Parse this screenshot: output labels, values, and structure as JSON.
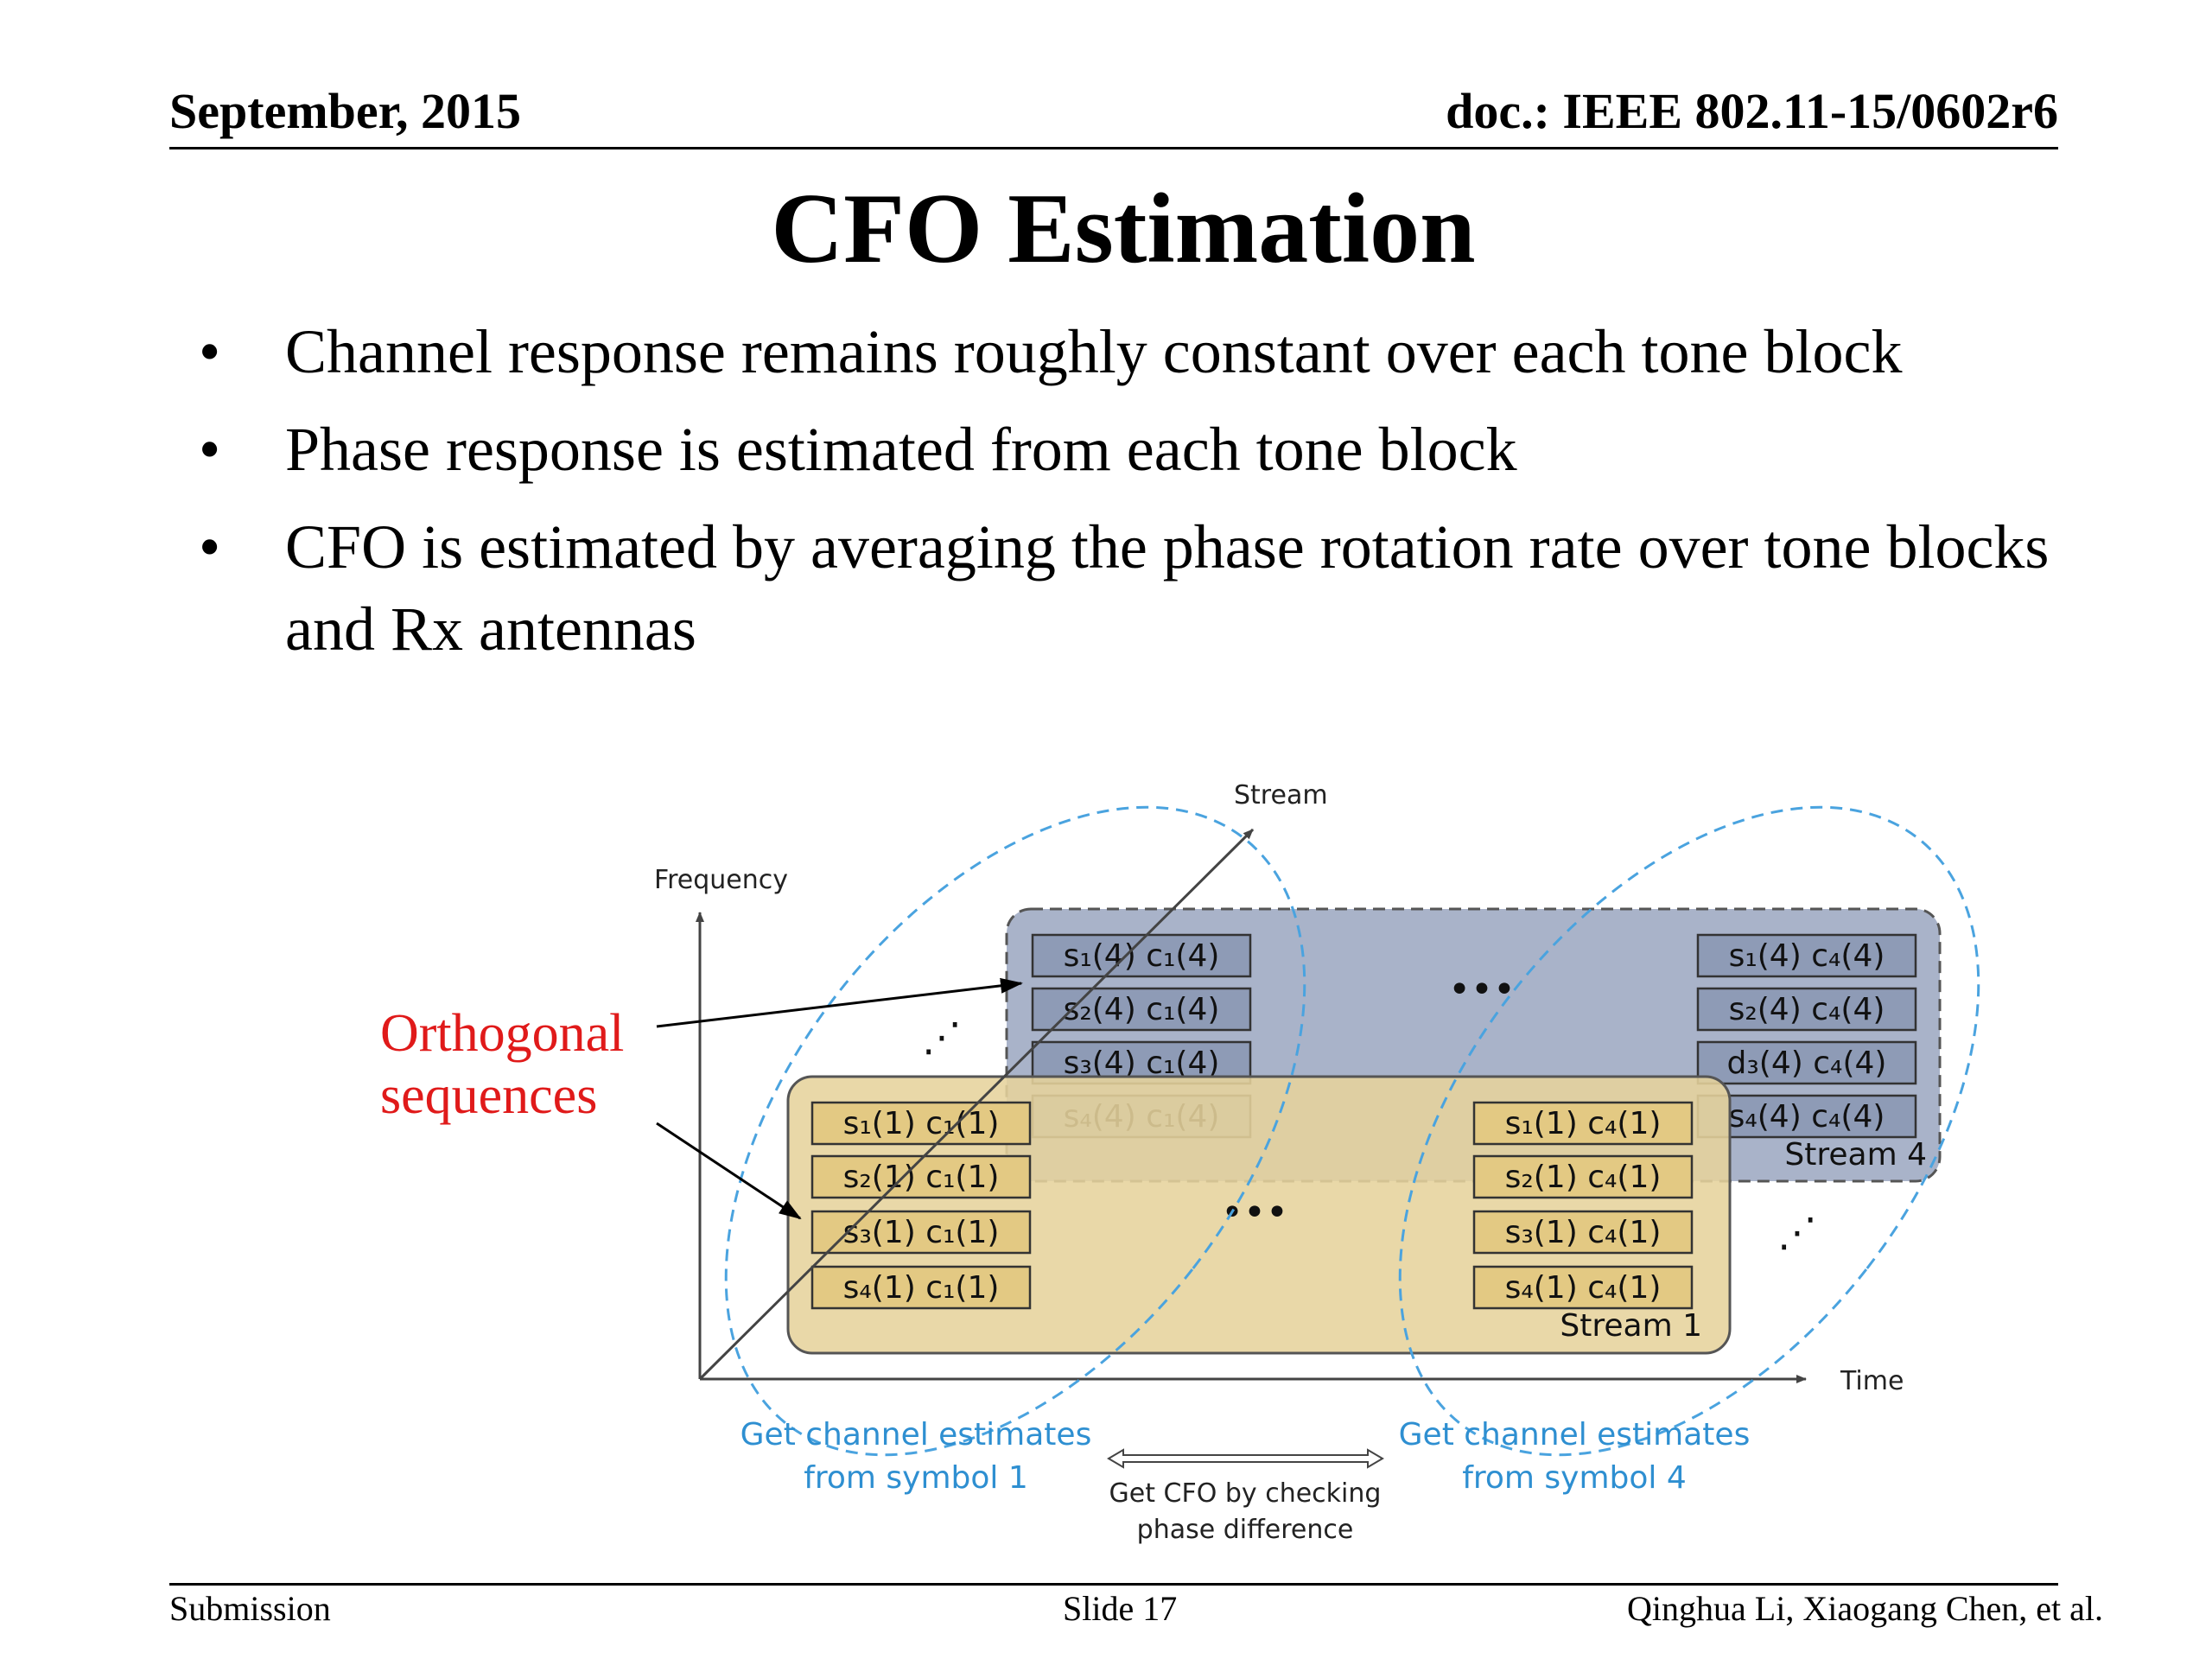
{
  "header": {
    "date": "September, 2015",
    "doc": "doc.: IEEE 802.11-15/0602r6"
  },
  "title": "CFO Estimation",
  "bullets": [
    "Channel response remains roughly constant over each tone block",
    "Phase response is estimated from each tone block",
    "CFO is estimated by averaging the phase rotation rate over tone blocks and Rx antennas"
  ],
  "bullet_glyph": "•",
  "diagram": {
    "axis_stream": "Stream",
    "axis_frequency": "Frequency",
    "axis_time": "Time",
    "orthogonal_line1": "Orthogonal",
    "orthogonal_line2": "sequences",
    "stream4_label": "Stream 4",
    "stream1_label": "Stream 1",
    "stream4_left": [
      "s₁(4) c₁(4)",
      "s₂(4) c₁(4)",
      "s₃(4) c₁(4)",
      "s₄(4) c₁(4)"
    ],
    "stream4_right": [
      "s₁(4) c₄(4)",
      "s₂(4) c₄(4)",
      "d₃(4) c₄(4)",
      "s₄(4) c₄(4)"
    ],
    "stream1_left": [
      "s₁(1) c₁(1)",
      "s₂(1) c₁(1)",
      "s₃(1) c₁(1)",
      "s₄(1) c₁(1)"
    ],
    "stream1_right": [
      "s₁(1) c₄(1)",
      "s₂(1) c₄(1)",
      "s₃(1) c₄(1)",
      "s₄(1) c₄(1)"
    ],
    "ellipsis": "•••",
    "diag_ellipsis": "⋰",
    "caption_left_1": "Get channel estimates",
    "caption_left_2": "from symbol 1",
    "caption_right_1": "Get channel estimates",
    "caption_right_2": "from symbol 4",
    "caption_mid_1": "Get CFO by checking",
    "caption_mid_2": "phase difference",
    "colors": {
      "stream4_fill": "#9aa6bf",
      "stream1_fill": "#e6d39c",
      "cell_blue": "#8e9bb6",
      "cell_gold": "#e3c983",
      "ellipse": "#4aa3df",
      "caption_blue": "#2e8fd1",
      "orthogonal_red": "#e01a1a"
    }
  },
  "footer": {
    "left": "Submission",
    "center": "Slide 17",
    "right": "Qinghua Li, Xiaogang Chen, et al."
  }
}
